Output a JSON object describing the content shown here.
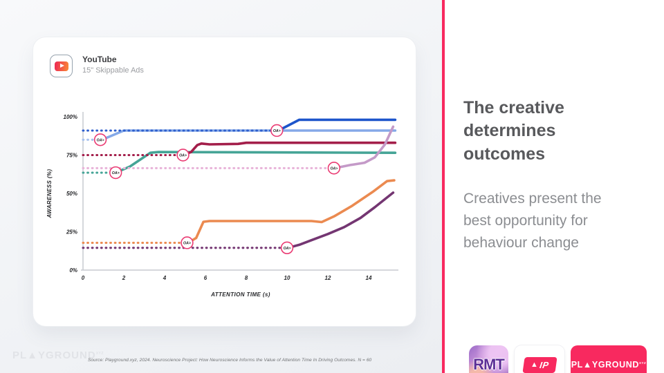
{
  "colors": {
    "brand-pink": "#f8295f",
    "heading-grey": "#58595c",
    "body-grey": "#8b8d91"
  },
  "card": {
    "platform": "YouTube",
    "format": "15\" Skippable Ads"
  },
  "right_panel": {
    "heading": "The creative determines outcomes",
    "body": "Creatives present the best opportunity for behaviour change"
  },
  "watermark": {
    "text": "PL▲YGROUND",
    "sup": "XYZ"
  },
  "footer": {
    "source": "Source: Playground.xyz, 2024. Neuroscience Project: How Neuroscience Informs the Value of Attention Time In Driving Outcomes. N = 60"
  },
  "logos": {
    "rmt": "RMT",
    "aip_triangle": "▲",
    "aip_label": "IP",
    "playground": {
      "text": "PL▲YGROUND",
      "sup": "XYZ"
    }
  },
  "chart_data": {
    "type": "line",
    "title": "YouTube 15s Skippable Ads — Awareness vs Attention Time",
    "xlabel": "ATTENTION TIME (s)",
    "ylabel": "AWARENESS (%)",
    "xlim": [
      0,
      15.4
    ],
    "ylim": [
      0,
      100
    ],
    "xticks": [
      0,
      2,
      4,
      6,
      8,
      10,
      12,
      14
    ],
    "yticks": [
      0,
      25,
      50,
      75,
      100
    ],
    "ytick_suffix": "%",
    "grid": false,
    "legend": "none",
    "marker_label": "OA>",
    "series": [
      {
        "name": "light-blue-solid",
        "style": "solid",
        "color": "#85a9e8",
        "points": [
          [
            0.85,
            85
          ],
          [
            1.2,
            86.5
          ],
          [
            2.0,
            91
          ],
          [
            15.3,
            91
          ]
        ]
      },
      {
        "name": "teal-solid",
        "style": "solid",
        "color": "#45a496",
        "points": [
          [
            1.6,
            63.5
          ],
          [
            2.3,
            67.5
          ],
          [
            3.3,
            76.5
          ],
          [
            3.7,
            77
          ],
          [
            15.3,
            76.5
          ]
        ]
      },
      {
        "name": "crimson-solid",
        "style": "solid",
        "color": "#a31e4a",
        "points": [
          [
            4.9,
            75
          ],
          [
            5.3,
            77
          ],
          [
            5.6,
            81.5
          ],
          [
            5.8,
            82.5
          ],
          [
            6.2,
            82
          ],
          [
            7.6,
            82.3
          ],
          [
            8.0,
            83
          ],
          [
            15.3,
            83
          ]
        ]
      },
      {
        "name": "orange-solid",
        "style": "solid",
        "color": "#eb8a50",
        "points": [
          [
            5.15,
            17.8
          ],
          [
            5.55,
            21
          ],
          [
            5.9,
            31.5
          ],
          [
            6.2,
            32
          ],
          [
            11.2,
            32
          ],
          [
            11.7,
            31.3
          ],
          [
            12.3,
            35
          ],
          [
            13.2,
            42
          ],
          [
            14.2,
            51
          ],
          [
            14.9,
            58
          ],
          [
            15.25,
            58.5
          ]
        ]
      },
      {
        "name": "purple-solid",
        "style": "solid",
        "color": "#743672",
        "points": [
          [
            10.05,
            14.5
          ],
          [
            10.6,
            16.5
          ],
          [
            11.2,
            19.5
          ],
          [
            12.0,
            23.5
          ],
          [
            12.8,
            28
          ],
          [
            13.6,
            34
          ],
          [
            14.3,
            41
          ],
          [
            15.2,
            50.5
          ]
        ]
      },
      {
        "name": "plum-solid",
        "style": "solid",
        "color": "#c49ac8",
        "points": [
          [
            12.35,
            66.5
          ],
          [
            13.1,
            68.5
          ],
          [
            13.8,
            70
          ],
          [
            14.3,
            73.5
          ],
          [
            14.8,
            82
          ],
          [
            15.2,
            93.5
          ]
        ]
      },
      {
        "name": "dark-blue-solid",
        "style": "solid",
        "color": "#1d55cb",
        "points": [
          [
            9.5,
            91
          ],
          [
            9.8,
            92.5
          ],
          [
            10.6,
            98
          ],
          [
            15.3,
            98
          ]
        ]
      },
      {
        "name": "light-blue-baseline",
        "style": "dotted",
        "color": "#a9c3ee",
        "points": [
          [
            0,
            85
          ],
          [
            0.72,
            85
          ]
        ]
      },
      {
        "name": "dark-blue-baseline",
        "style": "dotted",
        "color": "#2e5fcd",
        "points": [
          [
            0,
            91
          ],
          [
            9.35,
            91
          ]
        ]
      },
      {
        "name": "crimson-baseline",
        "style": "dotted",
        "color": "#a31e4a",
        "points": [
          [
            0,
            75
          ],
          [
            4.75,
            75
          ]
        ]
      },
      {
        "name": "teal-baseline",
        "style": "dotted",
        "color": "#45a496",
        "points": [
          [
            0,
            63.5
          ],
          [
            1.45,
            63.5
          ]
        ]
      },
      {
        "name": "pink-baseline",
        "style": "dotted",
        "color": "#e8b4d9",
        "points": [
          [
            0,
            66.5
          ],
          [
            12.15,
            66.5
          ]
        ]
      },
      {
        "name": "orange-baseline",
        "style": "dotted",
        "color": "#eb8a50",
        "points": [
          [
            0,
            17.8
          ],
          [
            4.95,
            17.8
          ]
        ]
      },
      {
        "name": "purple-baseline",
        "style": "dotted",
        "color": "#743672",
        "points": [
          [
            0,
            14.5
          ],
          [
            9.85,
            14.5
          ]
        ]
      }
    ],
    "markers": [
      {
        "x": 0.85,
        "y": 85
      },
      {
        "x": 1.6,
        "y": 63.5
      },
      {
        "x": 4.9,
        "y": 75
      },
      {
        "x": 9.5,
        "y": 91
      },
      {
        "x": 12.3,
        "y": 66.5
      },
      {
        "x": 5.1,
        "y": 17.8
      },
      {
        "x": 10.0,
        "y": 14.5
      }
    ]
  }
}
